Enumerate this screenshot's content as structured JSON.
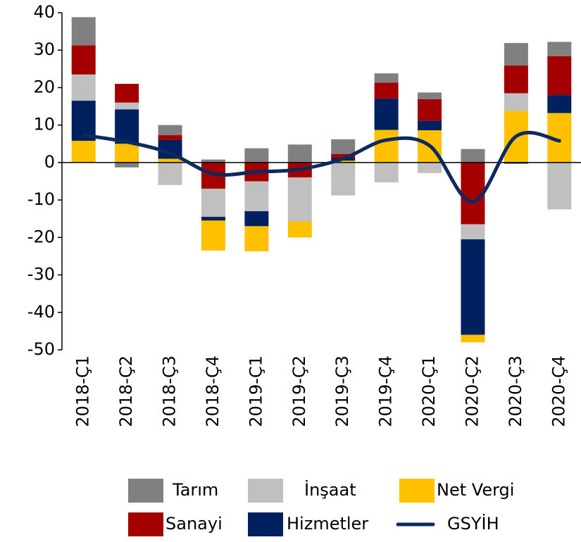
{
  "chart_data": {
    "type": "bar",
    "stacked": true,
    "categories": [
      "2018-Ç1",
      "2018-Ç2",
      "2018-Ç3",
      "2018-Ç4",
      "2019-Ç1",
      "2019-Ç2",
      "2019-Ç3",
      "2019-Ç4",
      "2020-Ç1",
      "2020-Ç2",
      "2020-Ç3",
      "2020-Ç4"
    ],
    "series": [
      {
        "name": "Tarım",
        "color": "#808080",
        "values": [
          7.5,
          -1.3,
          2.7,
          0.8,
          3.8,
          4.8,
          3.9,
          2.5,
          1.8,
          3.6,
          6,
          3.8
        ]
      },
      {
        "name": "İnşaat",
        "color": "#c0c0c0",
        "values": [
          7,
          1.8,
          -6,
          -7.5,
          -8,
          -11.7,
          -8.8,
          -5.3,
          -2.8,
          -4,
          4.7,
          -12.5
        ]
      },
      {
        "name": "Net Vergi",
        "color": "#ffc000",
        "values": [
          5.8,
          5,
          1,
          -8,
          -6.7,
          -4.3,
          0.5,
          8.7,
          8.6,
          -2,
          13.8,
          13.2
        ]
      },
      {
        "name": "Sanayi",
        "color": "#a50000",
        "values": [
          7.8,
          5,
          1.3,
          -7,
          -5,
          -4,
          1.1,
          4.2,
          5.7,
          -16.5,
          7.4,
          10.4
        ]
      },
      {
        "name": "Hizmetler",
        "color": "#002060",
        "values": [
          10.7,
          9.2,
          5,
          -1,
          -4,
          0,
          0.7,
          8.4,
          2.6,
          -25.5,
          -0.3,
          4.8
        ]
      },
      {
        "name": "GSYİH",
        "color": "#0d2a5e",
        "type": "line",
        "values": [
          7.3,
          5.5,
          2.5,
          -3,
          -2.5,
          -1.8,
          1,
          6,
          4.5,
          -10.5,
          7,
          5.8
        ]
      }
    ],
    "ylim": [
      -50,
      40
    ],
    "yticks": [
      -50,
      -40,
      -30,
      -20,
      -10,
      0,
      10,
      20,
      30,
      40
    ]
  }
}
